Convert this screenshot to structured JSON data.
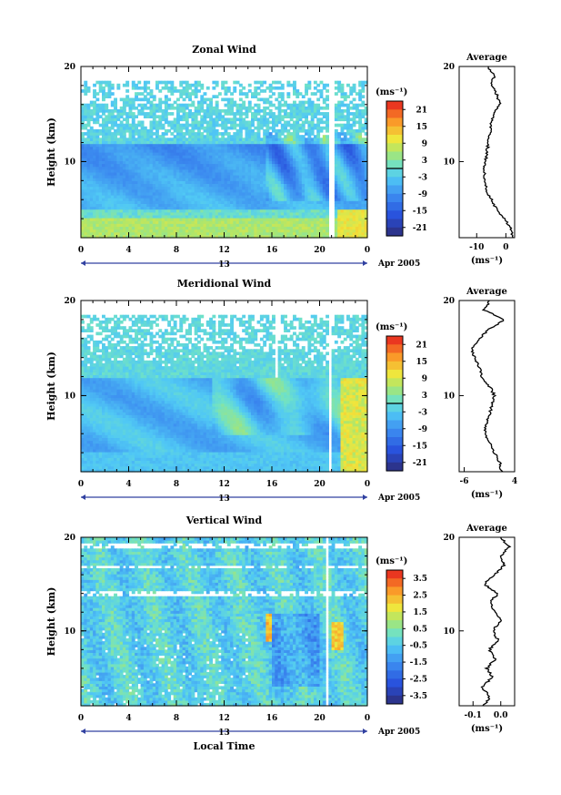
{
  "chart_data": [
    {
      "type": "heatmap",
      "title": "Zonal Wind",
      "ylabel": "Height (km)",
      "xlabel": "",
      "x_ticks": [
        "0",
        "4",
        "8",
        "12",
        "16",
        "20",
        "0"
      ],
      "y_ticks": [
        "20",
        "10"
      ],
      "xlim_hours": [
        0,
        24
      ],
      "ylim_km": [
        2,
        20
      ],
      "date_labels": [
        "13",
        "Apr 2005"
      ],
      "colorbar": {
        "unit": "(ms⁻¹)",
        "ticks": [
          "21",
          "15",
          "9",
          "3",
          "-3",
          "-9",
          "-15",
          "-21"
        ],
        "range": [
          -24,
          24
        ],
        "zero_line": true
      },
      "average": {
        "title": "Average",
        "unit": "(ms⁻¹)",
        "x_ticks": [
          "-10",
          "0"
        ],
        "xlim": [
          -16,
          3
        ],
        "profile": [
          [
            2,
            2.5
          ],
          [
            3,
            1.5
          ],
          [
            4,
            -0.5
          ],
          [
            5,
            -3
          ],
          [
            6,
            -5
          ],
          [
            7,
            -6.5
          ],
          [
            8,
            -7
          ],
          [
            9,
            -7.5
          ],
          [
            10,
            -7
          ],
          [
            11,
            -6.5
          ],
          [
            12,
            -6
          ],
          [
            13,
            -5.5
          ],
          [
            14,
            -5
          ],
          [
            15,
            -4
          ],
          [
            16,
            -2
          ],
          [
            17,
            -3
          ],
          [
            18,
            -5
          ],
          [
            19,
            -4
          ],
          [
            20,
            -6
          ]
        ]
      }
    },
    {
      "type": "heatmap",
      "title": "Meridional Wind",
      "ylabel": "Height (km)",
      "xlabel": "",
      "x_ticks": [
        "0",
        "4",
        "8",
        "12",
        "16",
        "20",
        "0"
      ],
      "y_ticks": [
        "20",
        "10"
      ],
      "xlim_hours": [
        0,
        24
      ],
      "ylim_km": [
        2,
        20
      ],
      "date_labels": [
        "13",
        "Apr 2005"
      ],
      "colorbar": {
        "unit": "(ms⁻¹)",
        "ticks": [
          "21",
          "15",
          "9",
          "3",
          "-3",
          "-9",
          "-15",
          "-21"
        ],
        "range": [
          -24,
          24
        ],
        "zero_line": true
      },
      "average": {
        "title": "Average",
        "unit": "(ms⁻¹)",
        "x_ticks": [
          "-6",
          "4"
        ],
        "xlim": [
          -7,
          4
        ],
        "profile": [
          [
            2,
            1.5
          ],
          [
            3,
            1
          ],
          [
            4,
            0
          ],
          [
            5,
            -1
          ],
          [
            6,
            -2
          ],
          [
            7,
            -1.5
          ],
          [
            8,
            -1
          ],
          [
            9,
            -0.5
          ],
          [
            10,
            0
          ],
          [
            11,
            -1
          ],
          [
            12,
            -2.5
          ],
          [
            13,
            -3
          ],
          [
            14,
            -4
          ],
          [
            15,
            -4.5
          ],
          [
            16,
            -3
          ],
          [
            17,
            -1
          ],
          [
            18,
            2
          ],
          [
            19,
            -2
          ],
          [
            20,
            -1
          ]
        ]
      }
    },
    {
      "type": "heatmap",
      "title": "Vertical Wind",
      "ylabel": "Height (km)",
      "xlabel": "Local Time",
      "x_ticks": [
        "0",
        "4",
        "8",
        "12",
        "16",
        "20",
        "0"
      ],
      "y_ticks": [
        "20",
        "10"
      ],
      "xlim_hours": [
        0,
        24
      ],
      "ylim_km": [
        2,
        20
      ],
      "date_labels": [
        "13",
        "Apr 2005"
      ],
      "colorbar": {
        "unit": "(ms⁻¹)",
        "ticks": [
          "3.5",
          "2.5",
          "1.5",
          "0.5",
          "-0.5",
          "-1.5",
          "-2.5",
          "-3.5"
        ],
        "range": [
          -4,
          4
        ],
        "zero_line": false
      },
      "average": {
        "title": "Average",
        "unit": "(ms⁻¹)",
        "x_ticks": [
          "-0.1",
          "0.0"
        ],
        "xlim": [
          -0.15,
          0.05
        ],
        "profile": [
          [
            2,
            -0.06
          ],
          [
            3,
            -0.04
          ],
          [
            4,
            -0.07
          ],
          [
            5,
            -0.03
          ],
          [
            6,
            -0.05
          ],
          [
            7,
            -0.02
          ],
          [
            8,
            -0.04
          ],
          [
            9,
            -0.01
          ],
          [
            10,
            -0.03
          ],
          [
            11,
            0.0
          ],
          [
            12,
            -0.02
          ],
          [
            13,
            -0.04
          ],
          [
            14,
            -0.01
          ],
          [
            15,
            -0.06
          ],
          [
            16,
            -0.02
          ],
          [
            17,
            0.01
          ],
          [
            18,
            0.0
          ],
          [
            19,
            0.03
          ],
          [
            20,
            0.0
          ]
        ]
      }
    }
  ]
}
